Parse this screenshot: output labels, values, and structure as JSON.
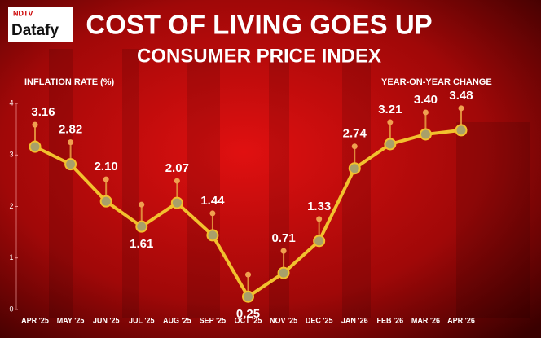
{
  "brand": {
    "top": "NDTV",
    "name": "Datafy"
  },
  "chart_data": {
    "type": "line",
    "title": "COST OF LIVING GOES UP",
    "subtitle": "CONSUMER PRICE INDEX",
    "y_label": "INFLATION RATE (%)",
    "annotation": "YEAR-ON-YEAR CHANGE",
    "categories": [
      "APR '25",
      "MAY '25",
      "JUN '25",
      "JUL '25",
      "AUG '25",
      "SEP '25",
      "OCT '25",
      "NOV '25",
      "DEC '25",
      "JAN '26",
      "FEB '26",
      "MAR '26",
      "APR '26"
    ],
    "values": [
      3.16,
      2.82,
      2.1,
      1.61,
      2.07,
      1.44,
      0.25,
      0.71,
      1.33,
      2.74,
      3.21,
      3.4,
      3.48
    ],
    "value_labels": [
      "3.16",
      "2.82",
      "2.10",
      "1.61",
      "2.07",
      "1.44",
      "0.25",
      "0.71",
      "1.33",
      "2.74",
      "3.21",
      "3.40",
      "3.48"
    ],
    "color": "#f2c12e",
    "ylim": [
      0,
      4
    ],
    "yticks": [
      0,
      1,
      2,
      3,
      4
    ]
  }
}
